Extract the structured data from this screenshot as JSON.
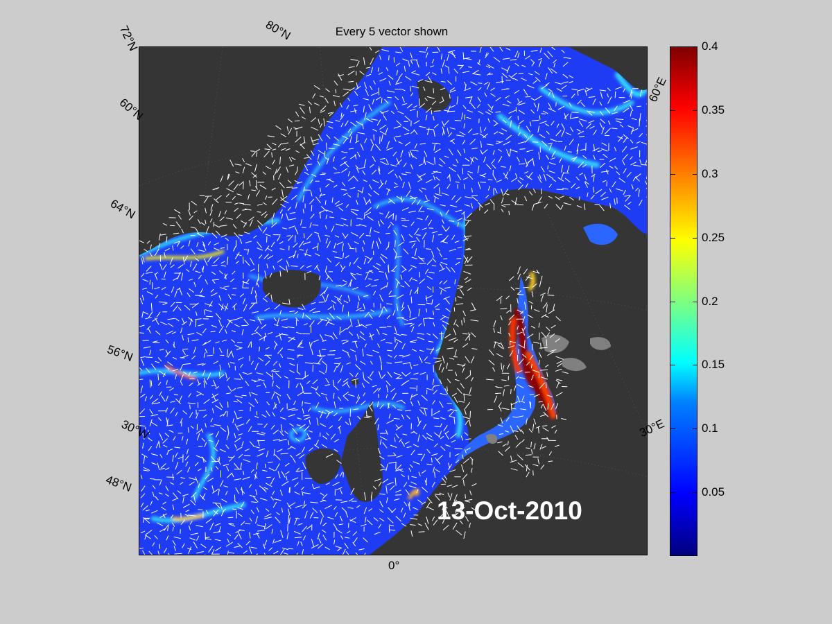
{
  "title": "Every 5 vector shown",
  "date_stamp": "13-Oct-2010",
  "labels": {
    "lat_72": "72°N",
    "lat_60": "60°N",
    "lat_64": "64°N",
    "lat_56": "56°N",
    "lat_48": "48°N",
    "lon_80n": "80°N",
    "lon_60e": "60°E",
    "lon_30e": "30°E",
    "lon_30w": "30°W",
    "lon_0": "0°"
  },
  "colorbar": {
    "colormap": "jet",
    "min": 0,
    "max": 0.4,
    "ticks": [
      "0.4",
      "0.35",
      "0.3",
      "0.25",
      "0.2",
      "0.15",
      "0.1",
      "0.05"
    ]
  },
  "colors": {
    "ocean": "#1a3cff",
    "land": "#353535",
    "sea_ice_gray": "#808080",
    "figure_bg": "#cccccc",
    "vectors": "#ffffff"
  }
}
